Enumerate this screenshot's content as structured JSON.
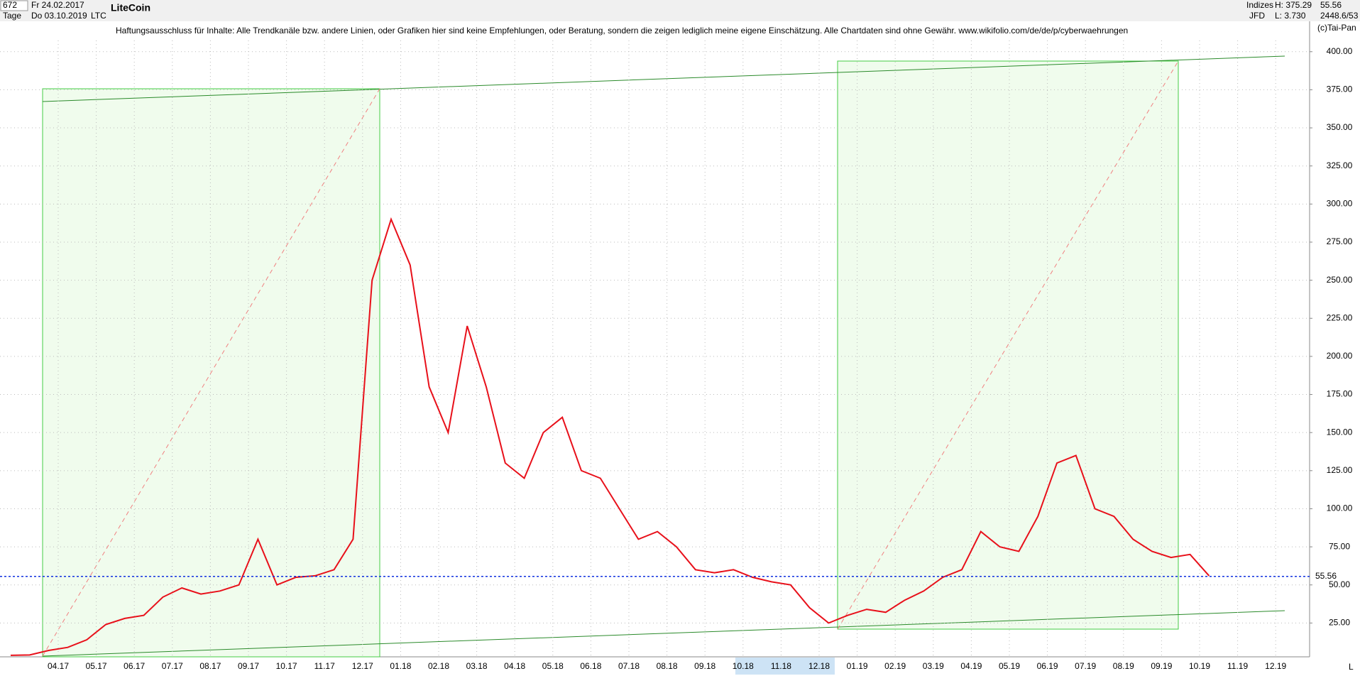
{
  "header": {
    "count": "672",
    "start_date": "Fr 24.02.2017",
    "period": "Tage",
    "end_date": "Do 03.10.2019",
    "symbol": "LTC",
    "market": "Indizes",
    "source": "JFD",
    "high": "H: 375.29",
    "low": "L: 3.730",
    "last": "55.56",
    "volume": "2448.6/53",
    "copyright": "(c)Tai-Pan",
    "scale_mode": "L"
  },
  "chart_data": {
    "type": "line",
    "title": "LiteCoin",
    "subtitle": "Haftungsausschluss für Inhalte: Alle Trendkanäle bzw. andere Linien, oder Grafiken hier sind keine Empfehlungen, oder Beratung, sondern die zeigen lediglich meine eigene Einschätzung. Alle Chartdaten sind ohne Gewähr.  www.wikifolio.com/de/de/p/cyberwaehrungen",
    "categories": [
      null,
      null,
      null,
      "04.17",
      null,
      "05.17",
      null,
      "06.17",
      null,
      "07.17",
      null,
      "08.17",
      null,
      "09.17",
      null,
      "10.17",
      null,
      "11.17",
      null,
      "12.17",
      null,
      "01.18",
      null,
      "02.18",
      null,
      "03.18",
      null,
      "04.18",
      null,
      "05.18",
      null,
      "06.18",
      null,
      "07.18",
      null,
      "08.18",
      null,
      "09.18",
      null,
      "10.18",
      null,
      "11.18",
      null,
      "12.18",
      null,
      "01.19",
      null,
      "02.19",
      null,
      "03.19",
      null,
      "04.19",
      null,
      "05.19",
      null,
      "06.19",
      null,
      "07.19",
      null,
      "08.19",
      null,
      "09.19",
      null,
      "10.19",
      null,
      "11.19",
      null,
      "12.19",
      null
    ],
    "series": [
      {
        "name": "LTC",
        "color": "#e8101a",
        "values": [
          3.8,
          4,
          7,
          9,
          14,
          24,
          28,
          30,
          42,
          48,
          44,
          46,
          50,
          80,
          50,
          55,
          56,
          60,
          80,
          250,
          290,
          260,
          180,
          150,
          220,
          180,
          130,
          120,
          150,
          160,
          125,
          120,
          100,
          80,
          85,
          75,
          60,
          58,
          60,
          55,
          52,
          50,
          35,
          25,
          30,
          34,
          32,
          40,
          46,
          55,
          60,
          85,
          75,
          72,
          95,
          130,
          135,
          100,
          95,
          80,
          72,
          68,
          70,
          56,
          null,
          null,
          null,
          null,
          null
        ]
      }
    ],
    "last_price": 55.56,
    "ylim": [
      2.8,
      426
    ],
    "yticks": [
      {
        "value": 25,
        "label": "25.00"
      },
      {
        "value": 50,
        "label": "50.00"
      },
      {
        "value": 75,
        "label": "75.00"
      },
      {
        "value": 100,
        "label": "100.00"
      },
      {
        "value": 125,
        "label": "125.00"
      },
      {
        "value": 150,
        "label": "150.00"
      },
      {
        "value": 175,
        "label": "175.00"
      },
      {
        "value": 200,
        "label": "200.00"
      },
      {
        "value": 225,
        "label": "225.00"
      },
      {
        "value": 250,
        "label": "250.00"
      },
      {
        "value": 275,
        "label": "275.00"
      },
      {
        "value": 300,
        "label": "300.00"
      },
      {
        "value": 325,
        "label": "325.00"
      },
      {
        "value": 350,
        "label": "350.00"
      },
      {
        "value": 375,
        "label": "375.00"
      },
      {
        "value": 400,
        "label": "400.00"
      }
    ],
    "grid": true
  }
}
